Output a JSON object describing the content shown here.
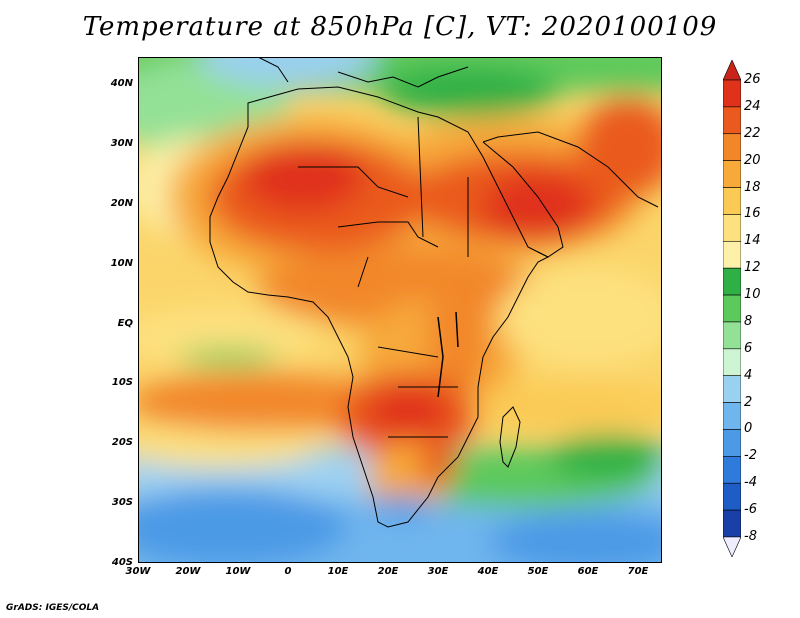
{
  "title": "Temperature at 850hPa [C], VT: 2020100109",
  "credit": "GrADS: IGES/COLA",
  "map": {
    "projection": "latlon",
    "lon_range": [
      -30,
      75
    ],
    "lat_range": [
      -40,
      45
    ],
    "lat_labels": [
      "40N",
      "30N",
      "20N",
      "10N",
      "EQ",
      "10S",
      "20S",
      "30S",
      "40S"
    ],
    "lon_labels": [
      "30W",
      "20W",
      "10W",
      "0",
      "10E",
      "20E",
      "30E",
      "40E",
      "50E",
      "60E",
      "70E"
    ]
  },
  "colorbar": {
    "labels": [
      "26",
      "24",
      "22",
      "20",
      "18",
      "16",
      "14",
      "12",
      "10",
      "8",
      "6",
      "4",
      "2",
      "0",
      "-2",
      "-4",
      "-6",
      "-8"
    ],
    "colors": [
      "#e0311a",
      "#ea5a1e",
      "#f2872a",
      "#f7a93a",
      "#fbca55",
      "#fde17f",
      "#fdf0a8",
      "#2fb045",
      "#5cc95c",
      "#93e196",
      "#cdf4d3",
      "#9ad0f0",
      "#6fb6ee",
      "#4c9ae6",
      "#2f7bdb",
      "#1e5cc6",
      "#1a3fa6",
      "#172a7c"
    ],
    "over_color": "#c8241a",
    "under_color": "#eeeeff"
  }
}
